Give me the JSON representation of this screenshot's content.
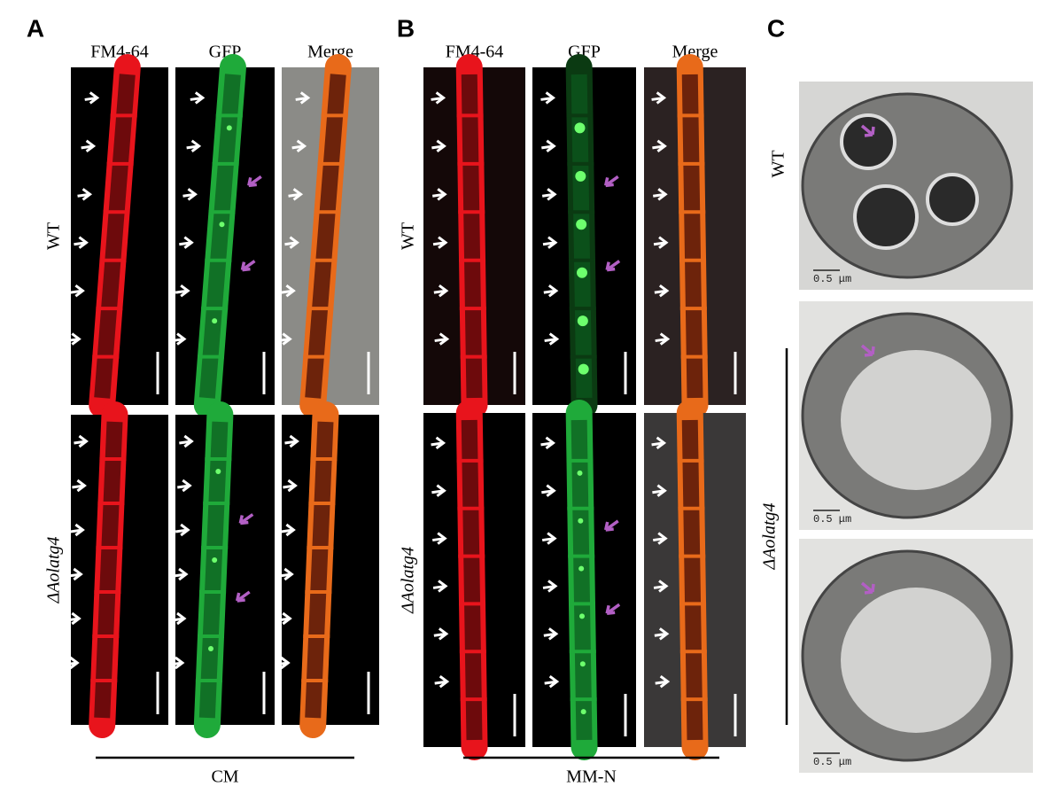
{
  "panels": [
    {
      "label": "A",
      "columns": [
        "FM4-64",
        "GFP",
        "Merge"
      ],
      "rows": [
        "WT",
        "ΔAolatg4"
      ],
      "condition": "CM"
    },
    {
      "label": "B",
      "columns": [
        "FM4-64",
        "GFP",
        "Merge"
      ],
      "rows": [
        "WT",
        "ΔAolatg4"
      ],
      "condition": "MM-N"
    },
    {
      "label": "C",
      "rows": [
        "WT",
        "ΔAolatg4"
      ],
      "scale_labels": [
        "0.5 μm",
        "0.5 μm",
        "0.5 μm"
      ]
    }
  ]
}
